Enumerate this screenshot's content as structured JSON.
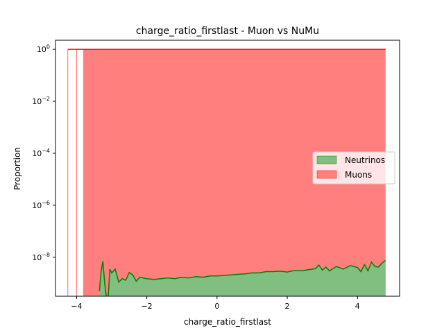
{
  "chart_data": {
    "type": "area",
    "title": "charge_ratio_firstlast - Muon vs NuMu",
    "xlabel": "charge_ratio_firstlast",
    "ylabel": "Proportion",
    "xlim": [
      -4.6,
      5.2
    ],
    "ylog": true,
    "ylim_exponent": [
      -9.5,
      0.35
    ],
    "x_ticks": [
      {
        "value": -4,
        "label": "−4"
      },
      {
        "value": -2,
        "label": "−2"
      },
      {
        "value": 0,
        "label": "0"
      },
      {
        "value": 2,
        "label": "2"
      },
      {
        "value": 4,
        "label": "4"
      }
    ],
    "y_ticks": [
      {
        "exp": 0,
        "base": "10",
        "sup": "0"
      },
      {
        "exp": -2,
        "base": "10",
        "sup": "−2"
      },
      {
        "exp": -4,
        "base": "10",
        "sup": "−4"
      },
      {
        "exp": -6,
        "base": "10",
        "sup": "−6"
      },
      {
        "exp": -8,
        "base": "10",
        "sup": "−8"
      }
    ],
    "legend_placement": "center-right",
    "grid": false,
    "series": [
      {
        "name": "Neutrinos",
        "color": "#008000",
        "fill": "#80bf80",
        "x": [
          -3.35,
          -3.3,
          -3.25,
          -3.2,
          -3.15,
          -3.1,
          -3.05,
          -3.0,
          -2.9,
          -2.8,
          -2.7,
          -2.6,
          -2.5,
          -2.4,
          -2.3,
          -2.2,
          -2.1,
          -2.0,
          -1.8,
          -1.6,
          -1.4,
          -1.2,
          -1.0,
          -0.8,
          -0.6,
          -0.4,
          -0.2,
          0.0,
          0.2,
          0.4,
          0.6,
          0.8,
          1.0,
          1.2,
          1.4,
          1.6,
          1.8,
          2.0,
          2.2,
          2.4,
          2.6,
          2.8,
          2.9,
          3.0,
          3.1,
          3.2,
          3.4,
          3.6,
          3.8,
          4.0,
          4.1,
          4.2,
          4.3,
          4.4,
          4.5,
          4.6,
          4.7,
          4.8
        ],
        "y": [
          5e-10,
          3e-09,
          7e-09,
          1e-09,
          2e-10,
          2e-10,
          3.5e-09,
          2.5e-09,
          3.5e-09,
          1.1e-09,
          1.5e-09,
          1.3e-09,
          2.6e-09,
          2.1e-09,
          1.2e-09,
          1.7e-09,
          1.6e-09,
          1.5e-09,
          1.4e-09,
          1.5e-09,
          1.6e-09,
          1.5e-09,
          1.7e-09,
          1.6e-09,
          1.8e-09,
          1.7e-09,
          1.9e-09,
          1.9e-09,
          2e-09,
          2.1e-09,
          2.2e-09,
          2.3e-09,
          2.5e-09,
          2.5e-09,
          2.8e-09,
          2.8e-09,
          2.9e-09,
          2.7e-09,
          3.1e-09,
          3e-09,
          3.3e-09,
          3.6e-09,
          5e-09,
          3.2e-09,
          4.2e-09,
          3e-09,
          4.4e-09,
          3.5e-09,
          4.8e-09,
          4e-09,
          2.8e-09,
          5.2e-09,
          3e-09,
          6.5e-09,
          4.4e-09,
          4.2e-09,
          6e-09,
          7.5e-09
        ]
      },
      {
        "name": "Muons",
        "color": "#ff0000",
        "fill": "#ff7f7f",
        "x_start": -3.8,
        "x_end": 4.8,
        "y": 1.0,
        "outlier_edges_x": [
          -4.25,
          -4.0,
          -3.8
        ]
      }
    ]
  }
}
